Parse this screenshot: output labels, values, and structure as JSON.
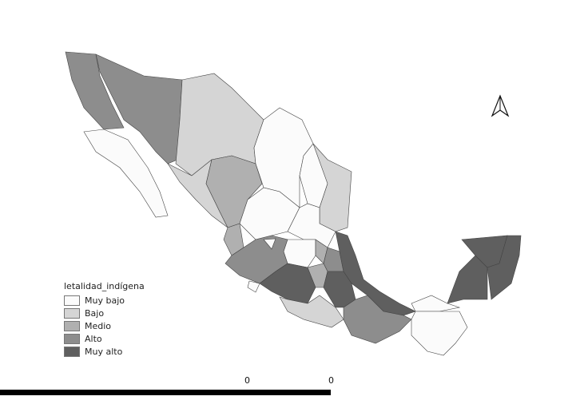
{
  "legend": {
    "title": "letalidad_indígena",
    "items": [
      {
        "label": "Muy bajo",
        "color": "#fbfbfb"
      },
      {
        "label": "Bajo",
        "color": "#d5d5d5"
      },
      {
        "label": "Medio",
        "color": "#b0b0b0"
      },
      {
        "label": "Alto",
        "color": "#8d8d8d"
      },
      {
        "label": "Muy alto",
        "color": "#5f5f5f"
      }
    ]
  },
  "scale_bar": {
    "labels": [
      "0",
      "0"
    ]
  },
  "north_arrow": "north-arrow-icon",
  "classes": {
    "baja_california": "Alto",
    "baja_california_sur": "Muy bajo",
    "sonora": "Alto",
    "chihuahua": "Bajo",
    "sinaloa": "Bajo",
    "durango": "Medio",
    "coahuila": "Muy bajo",
    "nuevo_leon": "Muy bajo",
    "tamaulipas": "Bajo",
    "zacatecas": "Muy bajo",
    "san_luis_potosi": "Muy bajo",
    "nayarit": "Medio",
    "jalisco": "Alto",
    "aguascalientes": "Muy bajo",
    "guanajuato": "Muy bajo",
    "queretaro": "Medio",
    "hidalgo": "Alto",
    "veracruz": "Muy alto",
    "michoacan": "Muy alto",
    "colima": "Muy bajo",
    "mexico": "Medio",
    "guerrero": "Bajo",
    "puebla": "Muy alto",
    "oaxaca": "Alto",
    "tabasco": "Muy bajo",
    "chiapas": "Muy bajo",
    "campeche": "Muy alto",
    "yucatan": "Muy alto",
    "quintana_roo": "Muy alto"
  }
}
